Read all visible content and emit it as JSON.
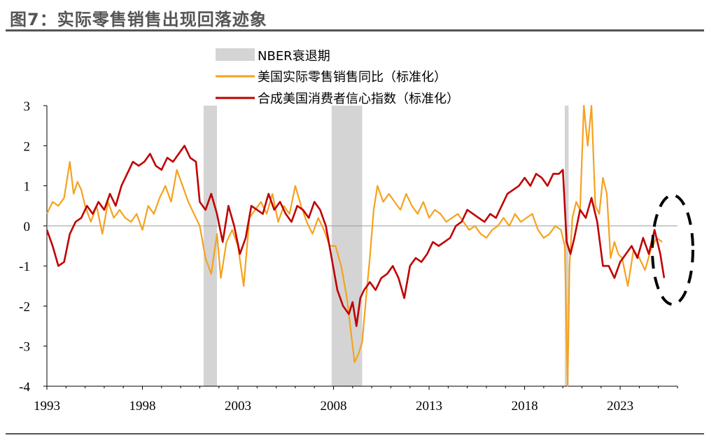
{
  "header": {
    "title": "图7：实际零售销售出现回落迹象"
  },
  "chart_data": {
    "type": "line",
    "title": "图7：实际零售销售出现回落迹象",
    "xlabel": "",
    "ylabel": "",
    "ylim": [
      -4,
      3
    ],
    "xlim": [
      1993.0,
      2026.0
    ],
    "yticks": [
      "3",
      "2",
      "1",
      "0",
      "-1",
      "-2",
      "-3",
      "-4"
    ],
    "xticks": [
      "1993",
      "1998",
      "2003",
      "2008",
      "2013",
      "2018",
      "2023"
    ],
    "grid": false,
    "legend_position": "top",
    "legend": [
      "NBER衰退期",
      "美国实际零售销售同比（标准化）",
      "合成美国消费者信心指数（标准化）"
    ],
    "recessions": [
      {
        "name": "NBER衰退期",
        "start": 2001.2,
        "end": 2001.9
      },
      {
        "name": "NBER衰退期",
        "start": 2007.9,
        "end": 2009.5
      },
      {
        "name": "NBER衰退期",
        "start": 2020.1,
        "end": 2020.3
      }
    ],
    "series": [
      {
        "name": "美国实际零售销售同比（标准化）",
        "color": "#F5A21E",
        "x": [
          1993.0,
          1993.3,
          1993.6,
          1993.9,
          1994.2,
          1994.4,
          1994.6,
          1994.8,
          1995.0,
          1995.3,
          1995.6,
          1995.9,
          1996.2,
          1996.5,
          1996.8,
          1997.1,
          1997.4,
          1997.7,
          1998.0,
          1998.3,
          1998.6,
          1998.9,
          1999.2,
          1999.5,
          1999.8,
          2000.1,
          2000.4,
          2000.7,
          2001.0,
          2001.3,
          2001.6,
          2001.9,
          2002.1,
          2002.4,
          2002.7,
          2003.0,
          2003.3,
          2003.6,
          2003.9,
          2004.2,
          2004.5,
          2004.8,
          2005.1,
          2005.4,
          2005.7,
          2006.0,
          2006.3,
          2006.6,
          2006.9,
          2007.2,
          2007.5,
          2007.8,
          2008.1,
          2008.4,
          2008.7,
          2008.9,
          2009.1,
          2009.3,
          2009.5,
          2009.7,
          2009.9,
          2010.1,
          2010.3,
          2010.6,
          2010.9,
          2011.2,
          2011.5,
          2011.8,
          2012.1,
          2012.4,
          2012.7,
          2013.0,
          2013.3,
          2013.6,
          2013.9,
          2014.2,
          2014.5,
          2014.8,
          2015.1,
          2015.4,
          2015.7,
          2016.0,
          2016.3,
          2016.6,
          2016.9,
          2017.2,
          2017.5,
          2017.8,
          2018.1,
          2018.4,
          2018.7,
          2019.0,
          2019.3,
          2019.6,
          2019.9,
          2020.1,
          2020.25,
          2020.35,
          2020.5,
          2020.7,
          2020.9,
          2021.1,
          2021.3,
          2021.5,
          2021.7,
          2021.9,
          2022.1,
          2022.3,
          2022.5,
          2022.7,
          2022.9,
          2023.1,
          2023.4,
          2023.7,
          2024.0,
          2024.3,
          2024.6,
          2024.9,
          2025.2
        ],
        "values": [
          0.3,
          0.6,
          0.5,
          0.7,
          1.6,
          0.8,
          1.1,
          0.9,
          0.5,
          0.1,
          0.5,
          -0.2,
          0.6,
          0.2,
          0.4,
          0.2,
          0.1,
          0.3,
          -0.1,
          0.5,
          0.3,
          0.7,
          1.0,
          0.6,
          1.4,
          1.0,
          0.6,
          0.3,
          0.0,
          -0.8,
          -1.2,
          -0.2,
          -1.3,
          -0.4,
          -0.1,
          -0.5,
          -1.5,
          0.2,
          0.4,
          0.6,
          0.3,
          0.8,
          0.1,
          0.5,
          0.3,
          1.0,
          0.5,
          0.1,
          -0.2,
          0.2,
          -0.1,
          -0.5,
          -0.5,
          -1.0,
          -1.8,
          -2.6,
          -3.4,
          -3.2,
          -2.9,
          -1.8,
          -0.8,
          0.4,
          1.0,
          0.6,
          0.8,
          0.6,
          0.4,
          0.8,
          0.5,
          0.3,
          0.6,
          0.2,
          0.4,
          0.3,
          0.1,
          0.2,
          0.3,
          0.1,
          -0.1,
          0.0,
          -0.2,
          -0.3,
          -0.1,
          0.0,
          0.2,
          0.0,
          0.3,
          0.1,
          0.2,
          0.3,
          -0.1,
          -0.3,
          -0.2,
          0.0,
          -0.1,
          -0.5,
          -4.0,
          -1.0,
          0.2,
          0.6,
          0.4,
          3.0,
          2.0,
          3.0,
          0.5,
          0.3,
          1.2,
          0.8,
          -0.8,
          -0.4,
          -0.7,
          -0.8,
          -1.5,
          -0.6,
          -0.8,
          -1.1,
          -0.6,
          -0.3,
          -0.4
        ]
      },
      {
        "name": "合成美国消费者信心指数（标准化）",
        "color": "#C00000",
        "x": [
          1993.0,
          1993.3,
          1993.6,
          1993.9,
          1994.2,
          1994.5,
          1994.8,
          1995.1,
          1995.4,
          1995.7,
          1996.0,
          1996.3,
          1996.6,
          1996.9,
          1997.2,
          1997.5,
          1997.8,
          1998.1,
          1998.4,
          1998.7,
          1999.0,
          1999.3,
          1999.6,
          1999.9,
          2000.2,
          2000.5,
          2000.8,
          2001.0,
          2001.3,
          2001.6,
          2001.9,
          2002.2,
          2002.5,
          2002.8,
          2003.1,
          2003.4,
          2003.7,
          2004.0,
          2004.3,
          2004.6,
          2004.9,
          2005.2,
          2005.5,
          2005.8,
          2006.1,
          2006.4,
          2006.7,
          2007.0,
          2007.3,
          2007.6,
          2007.9,
          2008.2,
          2008.5,
          2008.8,
          2009.0,
          2009.2,
          2009.4,
          2009.6,
          2009.9,
          2010.2,
          2010.5,
          2010.8,
          2011.1,
          2011.4,
          2011.7,
          2012.0,
          2012.3,
          2012.6,
          2012.9,
          2013.2,
          2013.5,
          2013.8,
          2014.1,
          2014.4,
          2014.7,
          2015.0,
          2015.3,
          2015.6,
          2015.9,
          2016.2,
          2016.5,
          2016.8,
          2017.1,
          2017.4,
          2017.7,
          2018.0,
          2018.3,
          2018.6,
          2018.9,
          2019.2,
          2019.5,
          2019.8,
          2020.0,
          2020.2,
          2020.4,
          2020.6,
          2020.9,
          2021.2,
          2021.5,
          2021.8,
          2022.1,
          2022.4,
          2022.7,
          2023.0,
          2023.3,
          2023.6,
          2023.9,
          2024.2,
          2024.5,
          2024.8,
          2025.1,
          2025.3
        ],
        "values": [
          -0.1,
          -0.5,
          -1.0,
          -0.9,
          -0.2,
          0.1,
          0.2,
          0.5,
          0.3,
          0.6,
          0.4,
          0.8,
          0.5,
          1.0,
          1.3,
          1.6,
          1.5,
          1.6,
          1.8,
          1.5,
          1.4,
          1.7,
          1.6,
          1.8,
          2.0,
          1.7,
          1.6,
          0.6,
          0.4,
          0.8,
          0.3,
          -0.4,
          0.5,
          0.0,
          -0.7,
          -0.3,
          0.5,
          0.4,
          0.3,
          0.8,
          0.4,
          0.6,
          0.3,
          0.1,
          0.5,
          0.4,
          0.2,
          0.6,
          0.4,
          0.0,
          -0.8,
          -1.6,
          -2.0,
          -2.2,
          -1.9,
          -2.5,
          -1.8,
          -1.6,
          -1.4,
          -1.6,
          -1.3,
          -1.2,
          -1.0,
          -1.3,
          -1.8,
          -1.0,
          -0.8,
          -0.9,
          -0.7,
          -0.4,
          -0.5,
          -0.4,
          -0.3,
          0.0,
          0.1,
          0.4,
          0.3,
          0.2,
          0.1,
          0.3,
          0.2,
          0.5,
          0.8,
          0.9,
          1.0,
          1.2,
          1.0,
          1.3,
          1.2,
          1.0,
          1.3,
          1.3,
          1.4,
          -0.4,
          -0.7,
          -0.3,
          0.4,
          0.2,
          0.7,
          0.1,
          -1.0,
          -1.0,
          -1.3,
          -0.9,
          -0.7,
          -0.5,
          -0.8,
          -0.3,
          -0.7,
          -0.1,
          -0.7,
          -1.3
        ]
      }
    ]
  }
}
